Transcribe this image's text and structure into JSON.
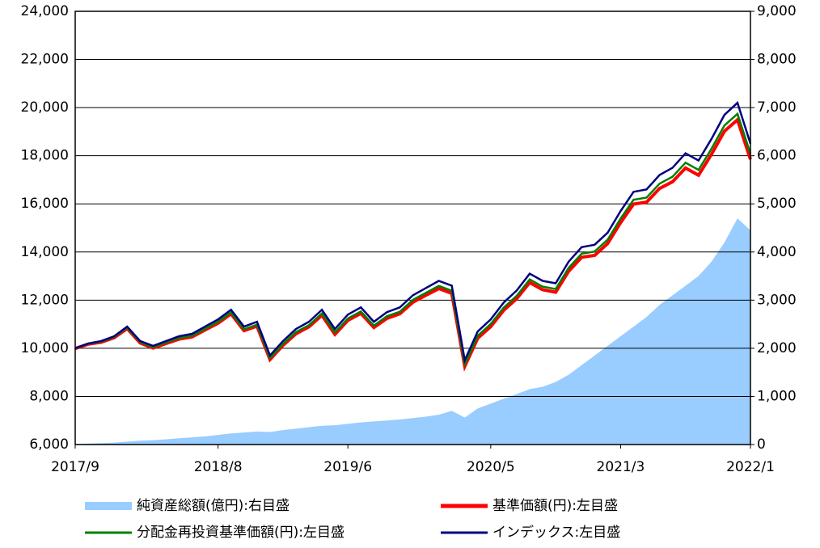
{
  "chart_data": {
    "type": "line",
    "categories": [
      "2017/9",
      null,
      null,
      null,
      null,
      null,
      null,
      null,
      null,
      null,
      null,
      "2018/8",
      null,
      null,
      null,
      null,
      null,
      null,
      null,
      null,
      null,
      "2019/6",
      null,
      null,
      null,
      null,
      null,
      null,
      null,
      null,
      null,
      null,
      "2020/5",
      null,
      null,
      null,
      null,
      null,
      null,
      null,
      null,
      null,
      "2021/3",
      null,
      null,
      null,
      null,
      null,
      null,
      null,
      null,
      null,
      "2022/1"
    ],
    "ylim": [
      6000,
      24000
    ],
    "yticks": [
      {
        "value": 6000,
        "label": "6,000"
      },
      {
        "value": 8000,
        "label": "8,000"
      },
      {
        "value": 10000,
        "label": "10,000"
      },
      {
        "value": 12000,
        "label": "12,000"
      },
      {
        "value": 14000,
        "label": "14,000"
      },
      {
        "value": 16000,
        "label": "16,000"
      },
      {
        "value": 18000,
        "label": "18,000"
      },
      {
        "value": 20000,
        "label": "20,000"
      },
      {
        "value": 22000,
        "label": "22,000"
      },
      {
        "value": 24000,
        "label": "24,000"
      }
    ],
    "y2lim": [
      0,
      9000
    ],
    "y2ticks": [
      0,
      {
        "value": 1000,
        "label": "1,000"
      },
      {
        "value": 2000,
        "label": "2,000"
      },
      {
        "value": 3000,
        "label": "3,000"
      },
      {
        "value": 4000,
        "label": "4,000"
      },
      {
        "value": 5000,
        "label": "5,000"
      },
      {
        "value": 6000,
        "label": "6,000"
      },
      {
        "value": 7000,
        "label": "7,000"
      },
      {
        "value": 8000,
        "label": "8,000"
      },
      {
        "value": 9000,
        "label": "9,000"
      }
    ],
    "grid": true,
    "series": [
      {
        "name": "純資産総額(億円):右目盛",
        "color": "#99ccff",
        "axis": "y2",
        "kind": "area",
        "values": [
          10,
          20,
          30,
          40,
          60,
          80,
          90,
          110,
          130,
          150,
          170,
          200,
          230,
          250,
          270,
          260,
          300,
          330,
          360,
          390,
          400,
          430,
          460,
          480,
          500,
          520,
          550,
          580,
          620,
          700,
          560,
          750,
          850,
          950,
          1050,
          1150,
          1200,
          1300,
          1450,
          1650,
          1850,
          2050,
          2250,
          2450,
          2650,
          2900,
          3100,
          3300,
          3500,
          3800,
          4200,
          4700,
          4450
        ]
      },
      {
        "name": "基準価額(円):左目盛",
        "color": "#ff0000",
        "values": [
          9990,
          10170,
          10250,
          10440,
          10820,
          10220,
          10010,
          10200,
          10380,
          10470,
          10760,
          11040,
          11430,
          10730,
          10920,
          9530,
          10120,
          10600,
          10890,
          11370,
          10580,
          11160,
          11450,
          10860,
          11240,
          11430,
          11910,
          12200,
          12480,
          12280,
          9250,
          10420,
          10900,
          11580,
          12060,
          12730,
          12430,
          12330,
          13200,
          13780,
          13860,
          14350,
          15220,
          15990,
          16070,
          16640,
          16920,
          17490,
          17190,
          18060,
          19020,
          19490,
          17850
        ]
      },
      {
        "name": "分配金再投資基準価額(円):左目盛",
        "color": "#008000",
        "values": [
          10000,
          10190,
          10280,
          10470,
          10860,
          10260,
          10050,
          10240,
          10430,
          10520,
          10810,
          11100,
          11490,
          10790,
          10980,
          9590,
          10180,
          10670,
          10960,
          11450,
          10660,
          11240,
          11530,
          10940,
          11330,
          11520,
          12010,
          12300,
          12590,
          12390,
          9340,
          10520,
          11010,
          11690,
          12180,
          12860,
          12560,
          12460,
          13340,
          13930,
          14020,
          14510,
          15390,
          16170,
          16260,
          16840,
          17130,
          17710,
          17410,
          18290,
          19260,
          19740,
          18080
        ]
      },
      {
        "name": "インデックス:左目盛",
        "color": "#000080",
        "values": [
          10000,
          10200,
          10300,
          10500,
          10900,
          10300,
          10100,
          10300,
          10500,
          10600,
          10900,
          11200,
          11600,
          10900,
          11100,
          9700,
          10300,
          10800,
          11100,
          11600,
          10800,
          11400,
          11700,
          11100,
          11500,
          11700,
          12200,
          12500,
          12800,
          12600,
          9500,
          10700,
          11200,
          11900,
          12400,
          13100,
          12800,
          12700,
          13600,
          14200,
          14300,
          14800,
          15700,
          16500,
          16600,
          17200,
          17500,
          18100,
          17800,
          18700,
          19700,
          20200,
          18500
        ]
      }
    ]
  }
}
